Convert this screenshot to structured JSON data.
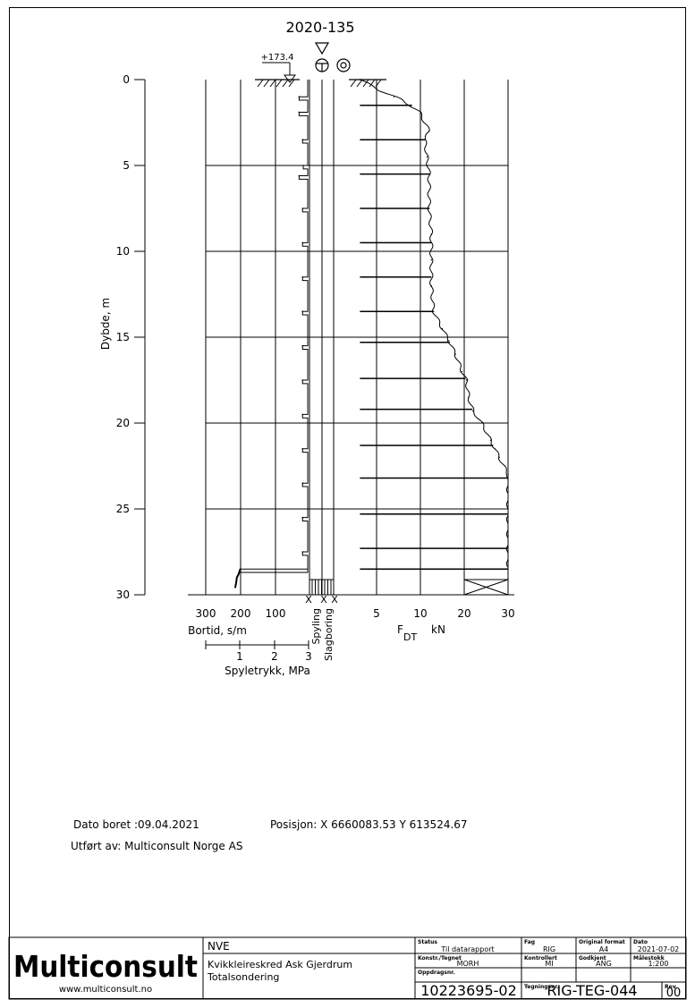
{
  "title": "2020-135",
  "ground_level": "+173.4",
  "depth_axis": {
    "label": "Dybde, m",
    "ticks": [
      "0",
      "5",
      "10",
      "15",
      "20",
      "25",
      "30"
    ]
  },
  "bortid_axis": {
    "label": "Bortid, s/m",
    "ticks": [
      "300",
      "200",
      "100"
    ]
  },
  "spyletrykk_axis": {
    "label": "Spyletrykk, MPa",
    "ticks": [
      "1",
      "2",
      "3"
    ]
  },
  "force_axis": {
    "label_main": "F",
    "label_sub": "DT",
    "label_unit": "kN",
    "ticks": [
      "5",
      "10",
      "20",
      "30"
    ]
  },
  "columns": {
    "spyling": "Spyling",
    "slagboring": "Slagboring"
  },
  "info": {
    "date_drilled": "Dato boret :09.04.2021",
    "position": "Posisjon: X 6660083.53 Y 613524.67",
    "performed_by": "Utført av: Multiconsult Norge AS"
  },
  "title_block": {
    "company": "Multiconsult",
    "website": "www.multiconsult.no",
    "client": "NVE",
    "project": "Kvikkleireskred Ask Gjerdrum",
    "drawing_title": "Totalsondering",
    "status_label": "Status",
    "status_value": "Til datarapport",
    "drawn_label": "Konstr./Tegnet",
    "drawn_value": "MORH",
    "order_label": "Oppdragsnr.",
    "order_value": "10223695-02",
    "discipline_label": "Fag",
    "discipline_value": "RIG",
    "checked_label": "Kontrollert",
    "checked_value": "MI",
    "drawing_no_label": "Tegningsnr.",
    "drawing_no_value": "RIG-TEG-044",
    "format_label": "Original format",
    "format_value": "A4",
    "approved_label": "Godkjent",
    "approved_value": "ANG",
    "date_label": "Dato",
    "date_value": "2021-07-02",
    "scale_label": "Målestokk",
    "scale_value": "1:200",
    "rev_label": "Rev.",
    "rev_value": "00"
  },
  "chart_data": [
    {
      "type": "line",
      "title": "2020-135",
      "name": "Bortid",
      "xlabel": "Bortid, s/m",
      "ylabel": "Dybde, m",
      "x_reversed": true,
      "xlim": [
        0,
        300
      ],
      "ylim": [
        0,
        30
      ],
      "baseline": 5,
      "spikes": [
        {
          "depth": 1.0,
          "value": 30
        },
        {
          "depth": 1.9,
          "value": 30
        },
        {
          "depth": 3.5,
          "value": 20
        },
        {
          "depth": 5.0,
          "value": 18
        },
        {
          "depth": 5.6,
          "value": 30
        },
        {
          "depth": 7.5,
          "value": 20
        },
        {
          "depth": 9.5,
          "value": 20
        },
        {
          "depth": 11.5,
          "value": 20
        },
        {
          "depth": 13.5,
          "value": 20
        },
        {
          "depth": 15.5,
          "value": 20
        },
        {
          "depth": 17.5,
          "value": 20
        },
        {
          "depth": 19.5,
          "value": 20
        },
        {
          "depth": 21.5,
          "value": 20
        },
        {
          "depth": 23.5,
          "value": 20
        },
        {
          "depth": 25.5,
          "value": 20
        },
        {
          "depth": 27.5,
          "value": 20
        },
        {
          "depth": 28.5,
          "value": 200
        }
      ],
      "tail": [
        {
          "depth": 28.5,
          "value": 200
        },
        {
          "depth": 28.8,
          "value": 205
        },
        {
          "depth": 29.0,
          "value": 210
        },
        {
          "depth": 29.3,
          "value": 212
        },
        {
          "depth": 29.6,
          "value": 215
        }
      ]
    },
    {
      "type": "line",
      "name": "FDT",
      "xlabel": "FDT kN",
      "ylabel": "Dybde, m",
      "xlim": [
        0,
        30
      ],
      "ylim": [
        0,
        30
      ],
      "profile": [
        {
          "depth": 0.0,
          "value": 2
        },
        {
          "depth": 0.5,
          "value": 5
        },
        {
          "depth": 1.0,
          "value": 7
        },
        {
          "depth": 1.5,
          "value": 9
        },
        {
          "depth": 2.0,
          "value": 10
        },
        {
          "depth": 3.0,
          "value": 12
        },
        {
          "depth": 3.5,
          "value": 11
        },
        {
          "depth": 4.5,
          "value": 11.5
        },
        {
          "depth": 5.5,
          "value": 12
        },
        {
          "depth": 7.5,
          "value": 12
        },
        {
          "depth": 9.0,
          "value": 12.5
        },
        {
          "depth": 10.5,
          "value": 12.5
        },
        {
          "depth": 12.0,
          "value": 12.5
        },
        {
          "depth": 13.5,
          "value": 13
        },
        {
          "depth": 14.5,
          "value": 15
        },
        {
          "depth": 15.2,
          "value": 16.5
        },
        {
          "depth": 16.0,
          "value": 18
        },
        {
          "depth": 17.0,
          "value": 19.5
        },
        {
          "depth": 17.5,
          "value": 20.5
        },
        {
          "depth": 18.5,
          "value": 21
        },
        {
          "depth": 19.3,
          "value": 22
        },
        {
          "depth": 20.0,
          "value": 24
        },
        {
          "depth": 21.0,
          "value": 26
        },
        {
          "depth": 21.5,
          "value": 27
        },
        {
          "depth": 22.0,
          "value": 28
        },
        {
          "depth": 23.0,
          "value": 30
        },
        {
          "depth": 25.0,
          "value": 30
        },
        {
          "depth": 26.5,
          "value": 30
        },
        {
          "depth": 28.0,
          "value": 30
        }
      ],
      "drops": [
        1.5,
        3.5,
        5.5,
        7.5,
        9.5,
        11.5,
        13.5,
        15.3,
        17.4,
        19.2,
        21.3,
        23.2,
        25.3,
        27.3,
        28.5
      ]
    }
  ]
}
